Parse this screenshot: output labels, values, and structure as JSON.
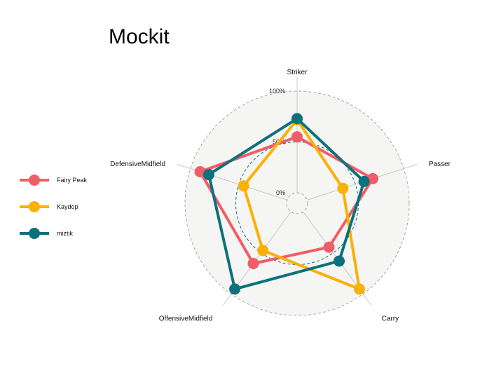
{
  "chart_data": {
    "type": "radar",
    "title": "Mockit",
    "axes": [
      "Striker",
      "Passer",
      "Carry",
      "OffensiveMidfield",
      "DefensiveMidfield"
    ],
    "tick_labels": [
      "0%",
      "50%",
      "100%"
    ],
    "ylim": [
      0,
      1
    ],
    "legend_position": "left",
    "series": [
      {
        "name": "Fairy Peak",
        "color": "#F25C66",
        "values": [
          0.55,
          0.68,
          0.43,
          0.63,
          0.9
        ]
      },
      {
        "name": "Kaydop",
        "color": "#FBB005",
        "values": [
          0.72,
          0.37,
          0.94,
          0.47,
          0.45
        ]
      },
      {
        "name": "miztik",
        "color": "#0B717D",
        "values": [
          0.73,
          0.59,
          0.6,
          0.94,
          0.81
        ]
      }
    ]
  }
}
